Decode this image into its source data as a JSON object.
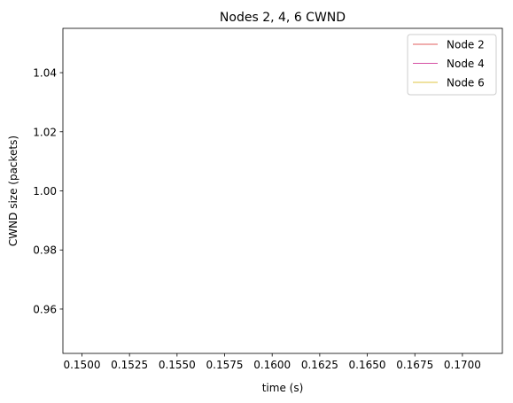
{
  "chart_data": {
    "type": "line",
    "title": "Nodes 2, 4, 6 CWND",
    "xlabel": "time (s)",
    "ylabel": "CWND size (packets)",
    "xlim": [
      0.149,
      0.1721
    ],
    "ylim": [
      0.945,
      1.055
    ],
    "xticks": [
      0.15,
      0.1525,
      0.155,
      0.1575,
      0.16,
      0.1625,
      0.165,
      0.1675,
      0.17
    ],
    "xtick_labels": [
      "0.1500",
      "0.1525",
      "0.1550",
      "0.1575",
      "0.1600",
      "0.1625",
      "0.1650",
      "0.1675",
      "0.1700"
    ],
    "yticks": [
      0.96,
      0.98,
      1.0,
      1.02,
      1.04
    ],
    "ytick_labels": [
      "0.96",
      "0.98",
      "1.00",
      "1.02",
      "1.04"
    ],
    "grid": false,
    "legend_position": "top-right",
    "series": [
      {
        "name": "Node 2",
        "color": "#d62728",
        "x": [],
        "y": []
      },
      {
        "name": "Node 4",
        "color": "#c71585",
        "x": [],
        "y": []
      },
      {
        "name": "Node 6",
        "color": "#d4b000",
        "x": [],
        "y": []
      }
    ]
  }
}
